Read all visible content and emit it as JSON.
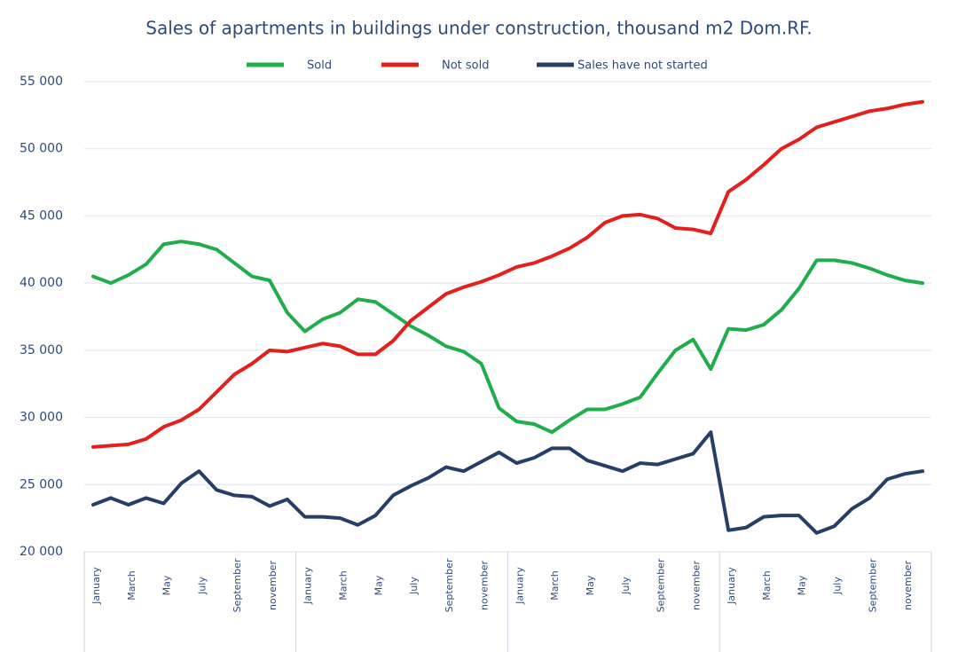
{
  "chart_data": {
    "type": "line",
    "title": "Sales of apartments in buildings under construction, thousand m2 Dom.RF.",
    "categories": [
      "January",
      null,
      "March",
      null,
      "May",
      null,
      "July",
      null,
      "September",
      null,
      "november",
      null,
      "January",
      null,
      "March",
      null,
      "May",
      null,
      "July",
      null,
      "September",
      null,
      "november",
      null,
      "January",
      null,
      "March",
      null,
      "May",
      null,
      "July",
      null,
      "September",
      null,
      "november",
      null,
      "January",
      null,
      "March",
      null,
      "May",
      null,
      "July",
      null,
      "September",
      null,
      "november",
      null
    ],
    "series": [
      {
        "name": "Sold",
        "color": "#1fae4b",
        "values": [
          40500,
          40000,
          40600,
          41400,
          42900,
          43100,
          42900,
          42500,
          41500,
          40500,
          40200,
          37800,
          36400,
          37300,
          37800,
          38800,
          38600,
          37700,
          36800,
          36100,
          35300,
          34900,
          34000,
          30700,
          29700,
          29500,
          28900,
          29800,
          30600,
          30600,
          31000,
          31500,
          33300,
          35000,
          35800,
          33600,
          36600,
          36500,
          36900,
          38000,
          39600,
          41700,
          41700,
          41500,
          41100,
          40600,
          40200,
          40000
        ]
      },
      {
        "name": "Not sold",
        "color": "#e3201b",
        "values": [
          27800,
          27900,
          28000,
          28400,
          29300,
          29800,
          30600,
          31900,
          33200,
          34000,
          35000,
          34900,
          35200,
          35500,
          35300,
          34700,
          34700,
          35700,
          37200,
          38200,
          39200,
          39700,
          40100,
          40600,
          41200,
          41500,
          42000,
          42600,
          43400,
          44500,
          45000,
          45100,
          44800,
          44100,
          44000,
          43700,
          46800,
          47700,
          48800,
          50000,
          50700,
          51600,
          52000,
          52400,
          52800,
          53000,
          53300,
          53500
        ]
      },
      {
        "name": "Sales have not started",
        "color": "#263f66",
        "values": [
          23500,
          24000,
          23500,
          24000,
          23600,
          25100,
          26000,
          24600,
          24200,
          24100,
          23400,
          23900,
          22600,
          22600,
          22500,
          22000,
          22700,
          24200,
          24900,
          25500,
          26300,
          26000,
          26700,
          27400,
          26600,
          27000,
          27700,
          27700,
          26800,
          26400,
          26000,
          26600,
          26500,
          26900,
          27300,
          28900,
          21600,
          21800,
          22600,
          22700,
          22700,
          21400,
          21900,
          23200,
          24000,
          25400,
          25800,
          26000
        ]
      }
    ],
    "ylim": [
      20000,
      55000
    ],
    "yticks": [
      {
        "value": 20000,
        "label": "20 000"
      },
      {
        "value": 25000,
        "label": "25 000"
      },
      {
        "value": 30000,
        "label": "30 000"
      },
      {
        "value": 35000,
        "label": "35 000"
      },
      {
        "value": 40000,
        "label": "40 000"
      },
      {
        "value": 45000,
        "label": "45 000"
      },
      {
        "value": 50000,
        "label": "50 000"
      },
      {
        "value": 55000,
        "label": "55 000"
      }
    ],
    "grid": true,
    "legend": "top"
  }
}
